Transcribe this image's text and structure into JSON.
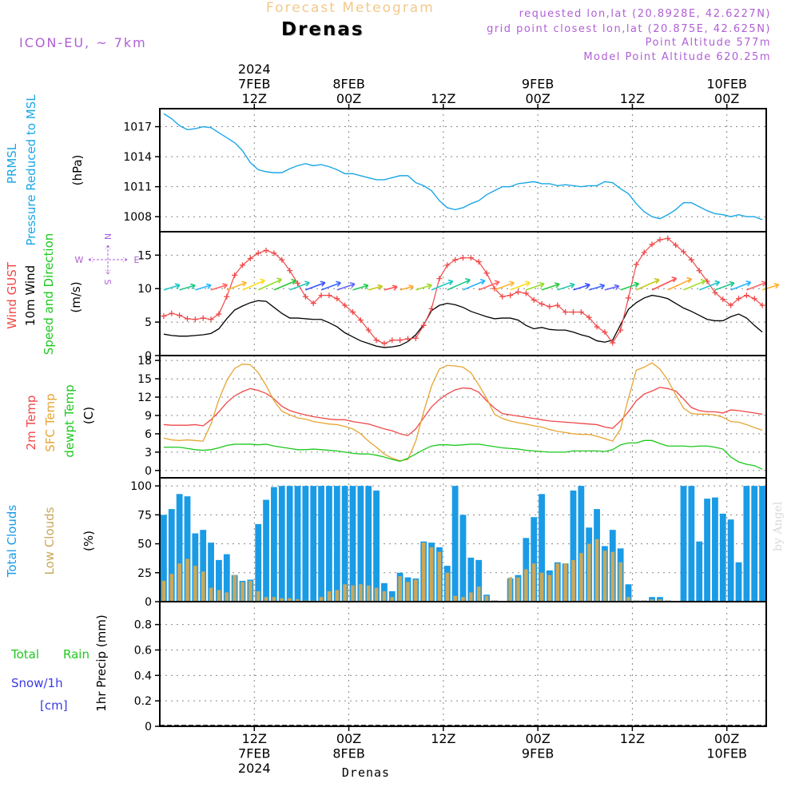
{
  "header": {
    "title": "Forecast Meteogram",
    "location": "Drenas",
    "model": "ICON-EU, ~ 7km",
    "requested": "requested lon,lat (20.8928E, 42.6227N)",
    "grid_point": "grid point closest lon,lat (20.875E, 42.625N)",
    "point_altitude": "Point Altitude 577m",
    "model_altitude": "Model Point Altitude 620.25m",
    "footer_location": "Drenas",
    "watermark": "by Angel"
  },
  "time_axis": {
    "top": [
      {
        "lines": [
          "2024",
          "7FEB",
          "12Z"
        ],
        "hours": 12
      },
      {
        "lines": [
          "8FEB",
          "00Z"
        ],
        "hours": 24
      },
      {
        "lines": [
          "12Z"
        ],
        "hours": 36
      },
      {
        "lines": [
          "9FEB",
          "00Z"
        ],
        "hours": 48
      },
      {
        "lines": [
          "12Z"
        ],
        "hours": 60
      },
      {
        "lines": [
          "10FEB",
          "00Z"
        ],
        "hours": 72
      }
    ],
    "bottom": [
      {
        "lines": [
          "12Z",
          "7FEB",
          "2024"
        ],
        "hours": 12
      },
      {
        "lines": [
          "00Z",
          "8FEB"
        ],
        "hours": 24
      },
      {
        "lines": [
          "12Z"
        ],
        "hours": 36
      },
      {
        "lines": [
          "00Z",
          "9FEB"
        ],
        "hours": 48
      },
      {
        "lines": [
          "12Z"
        ],
        "hours": 60
      },
      {
        "lines": [
          "00Z",
          "10FEB"
        ],
        "hours": 72
      }
    ]
  },
  "panel_labels": {
    "pressure": [
      "PRMSL",
      "Pressure Reduced to MSL"
    ],
    "pressure_unit": "(hPa)",
    "wind_gust": "Wind GUST",
    "wind_10m": "10m Wind",
    "wind_speed_dir": "Speed and Direction",
    "wind_unit": "(m/s)",
    "compass": {
      "n": "N",
      "s": "S",
      "w": "W",
      "e": "E"
    },
    "temp_2m": "2m Temp",
    "temp_sfc": "SFC Temp",
    "temp_dewpt": "dewpt Temp",
    "temp_unit": "(C)",
    "total_clouds": "Total Clouds",
    "low_clouds": "Low Clouds",
    "clouds_unit": "(%)",
    "precip_total": "Total",
    "precip_rain": "Rain",
    "precip_snow": "Snow/1h",
    "precip_snow_unit": "[cm]",
    "precip_axis": "1hr Precip (mm)"
  },
  "colors": {
    "pressure": "#1aa7e6",
    "gust": "#f04848",
    "wind": "#000000",
    "temp2m": "#f04848",
    "sfc": "#e5a533",
    "dewpt": "#1ec81e",
    "total_clouds": "#1a9be6",
    "low_clouds": "#c9a85a",
    "title": "#f3c98b",
    "purple": "#b05fd6",
    "rain": "#1ec81e",
    "snow": "#3a3ae6"
  },
  "chart_data": [
    {
      "type": "line",
      "name": "pressure",
      "ylabel": "(hPa)",
      "ylim": [
        1006.5,
        1018.8
      ],
      "yticks": [
        1008,
        1011,
        1014,
        1017
      ],
      "xlim_hours": [
        0,
        77
      ],
      "x_hours": [
        0.5,
        1.5,
        2.5,
        3.5,
        4.5,
        5.5,
        6.5,
        7.5,
        8.5,
        9.5,
        10.5,
        11.5,
        12.5,
        13.5,
        14.5,
        15.5,
        16.5,
        17.5,
        18.5,
        19.5,
        20.5,
        21.5,
        22.5,
        23.5,
        24.5,
        25.5,
        26.5,
        27.5,
        28.5,
        29.5,
        30.5,
        31.5,
        32.5,
        33.5,
        34.5,
        35.5,
        36.5,
        37.5,
        38.5,
        39.5,
        40.5,
        41.5,
        42.5,
        43.5,
        44.5,
        45.5,
        46.5,
        47.5,
        48.5,
        49.5,
        50.5,
        51.5,
        52.5,
        53.5,
        54.5,
        55.5,
        56.5,
        57.5,
        58.5,
        59.5,
        60.5,
        61.5,
        62.5,
        63.5,
        64.5,
        65.5,
        66.5,
        67.5,
        68.5,
        69.5,
        70.5,
        71.5,
        72.5,
        73.5,
        74.5,
        75.5,
        76.5
      ],
      "values": [
        1018.3,
        1017.8,
        1017.1,
        1016.7,
        1016.8,
        1017.0,
        1016.9,
        1016.4,
        1015.9,
        1015.4,
        1014.6,
        1013.4,
        1012.7,
        1012.5,
        1012.4,
        1012.4,
        1012.8,
        1013.1,
        1013.3,
        1013.1,
        1013.2,
        1013.0,
        1012.7,
        1012.3,
        1012.3,
        1012.1,
        1011.9,
        1011.7,
        1011.7,
        1011.9,
        1012.1,
        1012.1,
        1011.4,
        1011.1,
        1010.6,
        1009.6,
        1008.9,
        1008.7,
        1008.9,
        1009.3,
        1009.6,
        1010.2,
        1010.6,
        1011.0,
        1011.0,
        1011.3,
        1011.4,
        1011.5,
        1011.3,
        1011.3,
        1011.1,
        1011.2,
        1011.1,
        1011.0,
        1011.1,
        1011.1,
        1011.5,
        1011.4,
        1010.8,
        1010.3,
        1009.3,
        1008.5,
        1008.0,
        1007.8,
        1008.2,
        1008.7,
        1009.4,
        1009.4,
        1009.0,
        1008.6,
        1008.3,
        1008.2,
        1008.0,
        1008.2,
        1008.0,
        1008.0,
        1007.7
      ]
    },
    {
      "type": "line",
      "name": "wind",
      "ylabel": "(m/s)",
      "ylim": [
        0,
        18.5
      ],
      "yticks": [
        0,
        5,
        10,
        15
      ],
      "x_hours": [
        0.5,
        1.5,
        2.5,
        3.5,
        4.5,
        5.5,
        6.5,
        7.5,
        8.5,
        9.5,
        10.5,
        11.5,
        12.5,
        13.5,
        14.5,
        15.5,
        16.5,
        17.5,
        18.5,
        19.5,
        20.5,
        21.5,
        22.5,
        23.5,
        24.5,
        25.5,
        26.5,
        27.5,
        28.5,
        29.5,
        30.5,
        31.5,
        32.5,
        33.5,
        34.5,
        35.5,
        36.5,
        37.5,
        38.5,
        39.5,
        40.5,
        41.5,
        42.5,
        43.5,
        44.5,
        45.5,
        46.5,
        47.5,
        48.5,
        49.5,
        50.5,
        51.5,
        52.5,
        53.5,
        54.5,
        55.5,
        56.5,
        57.5,
        58.5,
        59.5,
        60.5,
        61.5,
        62.5,
        63.5,
        64.5,
        65.5,
        66.5,
        67.5,
        68.5,
        69.5,
        70.5,
        71.5,
        72.5,
        73.5,
        74.5,
        75.5,
        76.5
      ],
      "series": [
        {
          "name": "Wind GUST",
          "values": [
            5.9,
            6.3,
            6.0,
            5.5,
            5.4,
            5.6,
            5.4,
            6.2,
            8.8,
            12.0,
            13.5,
            14.5,
            15.3,
            15.7,
            15.3,
            14.3,
            12.7,
            10.8,
            8.8,
            7.8,
            9.0,
            9.0,
            8.5,
            7.5,
            6.5,
            5.3,
            3.8,
            2.3,
            1.8,
            2.3,
            2.3,
            2.5,
            2.6,
            4.5,
            7.0,
            11.5,
            13.5,
            14.3,
            14.6,
            14.6,
            14.0,
            12.3,
            10.0,
            8.8,
            9.0,
            9.5,
            9.3,
            8.3,
            7.7,
            7.3,
            7.5,
            6.5,
            6.5,
            6.5,
            5.7,
            4.3,
            3.5,
            1.9,
            3.8,
            8.6,
            13.6,
            15.4,
            16.6,
            17.3,
            17.5,
            16.5,
            15.5,
            14.3,
            12.7,
            11.1,
            9.4,
            8.4,
            7.5,
            8.5,
            9.0,
            8.5,
            7.5
          ]
        },
        {
          "name": "10m Wind",
          "values": [
            3.2,
            3.0,
            2.9,
            2.9,
            3.0,
            3.1,
            3.3,
            4.0,
            5.5,
            6.8,
            7.4,
            7.9,
            8.2,
            8.1,
            7.2,
            6.3,
            5.6,
            5.6,
            5.5,
            5.4,
            5.4,
            4.9,
            4.3,
            3.4,
            2.8,
            2.2,
            1.8,
            1.4,
            1.2,
            1.3,
            1.5,
            2.1,
            3.1,
            4.6,
            6.7,
            7.5,
            7.8,
            7.6,
            7.2,
            6.6,
            6.2,
            5.8,
            5.5,
            5.6,
            5.6,
            5.3,
            4.5,
            4.0,
            4.2,
            3.9,
            3.8,
            3.8,
            3.5,
            3.1,
            2.8,
            2.2,
            2.0,
            2.3,
            4.6,
            6.9,
            7.9,
            8.6,
            9.0,
            8.8,
            8.5,
            7.8,
            7.1,
            6.6,
            6.0,
            5.4,
            5.2,
            5.2,
            5.8,
            6.2,
            5.6,
            4.5,
            3.5
          ]
        }
      ],
      "barb_palette": [
        "#1ec8c8",
        "#1ec88c",
        "#28b4ff",
        "#ff6464",
        "#ffb432",
        "#ffdc1e",
        "#96dc28",
        "#28c83c",
        "#28c8b4",
        "#3c50ff",
        "#3c64ff",
        "#6464ff",
        "#1ecc50",
        "#c8c81e",
        "#ff5050",
        "#ffaa32",
        "#a0dc28"
      ]
    },
    {
      "type": "line",
      "name": "temperature",
      "ylabel": "(C)",
      "ylim": [
        -1.2,
        18.8
      ],
      "yticks": [
        0,
        3,
        6,
        9,
        12,
        15,
        18
      ],
      "x_hours": [
        0.5,
        1.5,
        2.5,
        3.5,
        4.5,
        5.5,
        6.5,
        7.5,
        8.5,
        9.5,
        10.5,
        11.5,
        12.5,
        13.5,
        14.5,
        15.5,
        16.5,
        17.5,
        18.5,
        19.5,
        20.5,
        21.5,
        22.5,
        23.5,
        24.5,
        25.5,
        26.5,
        27.5,
        28.5,
        29.5,
        30.5,
        31.5,
        32.5,
        33.5,
        34.5,
        35.5,
        36.5,
        37.5,
        38.5,
        39.5,
        40.5,
        41.5,
        42.5,
        43.5,
        44.5,
        45.5,
        46.5,
        47.5,
        48.5,
        49.5,
        50.5,
        51.5,
        52.5,
        53.5,
        54.5,
        55.5,
        56.5,
        57.5,
        58.5,
        59.5,
        60.5,
        61.5,
        62.5,
        63.5,
        64.5,
        65.5,
        66.5,
        67.5,
        68.5,
        69.5,
        70.5,
        71.5,
        72.5,
        73.5,
        74.5,
        75.5,
        76.5
      ],
      "series": [
        {
          "name": "2m Temp",
          "values": [
            7.5,
            7.4,
            7.4,
            7.4,
            7.5,
            7.3,
            8.3,
            9.6,
            11.1,
            12.2,
            12.9,
            13.4,
            13.1,
            12.6,
            11.7,
            10.5,
            9.8,
            9.4,
            9.1,
            8.8,
            8.6,
            8.4,
            8.3,
            8.3,
            8.0,
            7.8,
            7.6,
            7.2,
            6.8,
            6.5,
            6.0,
            5.7,
            6.8,
            8.6,
            10.4,
            11.6,
            12.5,
            13.2,
            13.5,
            13.4,
            12.8,
            11.4,
            10.2,
            9.3,
            9.1,
            8.9,
            8.7,
            8.5,
            8.3,
            8.1,
            8.0,
            7.9,
            7.8,
            7.7,
            7.6,
            7.5,
            7.1,
            6.9,
            8.1,
            9.6,
            11.4,
            12.5,
            13.0,
            13.6,
            13.4,
            13.0,
            11.7,
            10.3,
            9.8,
            9.6,
            9.6,
            9.4,
            9.9,
            9.8,
            9.6,
            9.4,
            9.2
          ]
        },
        {
          "name": "SFC Temp",
          "values": [
            5.3,
            5.0,
            4.9,
            5.0,
            4.9,
            4.8,
            7.6,
            11.6,
            14.7,
            16.7,
            17.4,
            17.3,
            16.0,
            13.9,
            11.4,
            9.7,
            9.1,
            8.6,
            8.4,
            8.0,
            7.8,
            7.6,
            7.5,
            7.2,
            6.8,
            6.0,
            4.8,
            3.8,
            2.7,
            2.0,
            1.6,
            1.8,
            4.8,
            9.6,
            13.8,
            16.6,
            17.2,
            17.1,
            16.9,
            16.0,
            14.0,
            11.8,
            9.2,
            8.5,
            8.1,
            7.8,
            7.6,
            7.3,
            7.1,
            6.7,
            6.4,
            6.2,
            6.0,
            5.9,
            5.9,
            5.6,
            5.2,
            4.8,
            6.8,
            11.8,
            16.4,
            16.9,
            17.6,
            16.6,
            14.8,
            12.4,
            10.2,
            9.3,
            9.2,
            9.2,
            9.1,
            8.7,
            8.0,
            7.9,
            7.5,
            7.0,
            6.6
          ]
        },
        {
          "name": "dewpt Temp",
          "values": [
            3.8,
            3.8,
            3.8,
            3.6,
            3.4,
            3.3,
            3.4,
            3.7,
            4.1,
            4.3,
            4.3,
            4.3,
            4.2,
            4.3,
            4.0,
            3.8,
            3.6,
            3.4,
            3.4,
            3.5,
            3.4,
            3.3,
            3.2,
            3.0,
            2.8,
            2.7,
            2.7,
            2.5,
            2.2,
            1.8,
            1.5,
            2.0,
            2.7,
            3.4,
            4.0,
            4.2,
            4.2,
            4.1,
            4.2,
            4.3,
            4.3,
            4.1,
            3.9,
            3.7,
            3.6,
            3.5,
            3.3,
            3.2,
            3.1,
            3.0,
            3.0,
            3.0,
            3.2,
            3.2,
            3.2,
            3.2,
            3.1,
            3.4,
            4.2,
            4.5,
            4.5,
            4.9,
            4.9,
            4.4,
            4.0,
            4.0,
            4.0,
            3.9,
            4.0,
            4.0,
            3.8,
            3.5,
            2.2,
            1.4,
            1.0,
            0.8,
            0.2
          ]
        }
      ]
    },
    {
      "type": "bar",
      "name": "clouds",
      "ylabel": "(%)",
      "ylim": [
        0,
        107
      ],
      "yticks": [
        0,
        25,
        50,
        75,
        100
      ],
      "x_hours": [
        0.5,
        1.5,
        2.5,
        3.5,
        4.5,
        5.5,
        6.5,
        7.5,
        8.5,
        9.5,
        10.5,
        11.5,
        12.5,
        13.5,
        14.5,
        15.5,
        16.5,
        17.5,
        18.5,
        19.5,
        20.5,
        21.5,
        22.5,
        23.5,
        24.5,
        25.5,
        26.5,
        27.5,
        28.5,
        29.5,
        30.5,
        31.5,
        32.5,
        33.5,
        34.5,
        35.5,
        36.5,
        37.5,
        38.5,
        39.5,
        40.5,
        41.5,
        42.5,
        43.5,
        44.5,
        45.5,
        46.5,
        47.5,
        48.5,
        49.5,
        50.5,
        51.5,
        52.5,
        53.5,
        54.5,
        55.5,
        56.5,
        57.5,
        58.5,
        59.5,
        60.5,
        61.5,
        62.5,
        63.5,
        64.5,
        65.5,
        66.5,
        67.5,
        68.5,
        69.5,
        70.5,
        71.5,
        72.5,
        73.5,
        74.5,
        75.5,
        76.5
      ],
      "series": [
        {
          "name": "Total Clouds",
          "values": [
            75,
            80,
            93,
            91,
            59,
            62,
            51,
            36,
            41,
            23,
            18,
            19,
            67,
            88,
            99,
            100,
            100,
            100,
            100,
            100,
            100,
            100,
            100,
            100,
            100,
            100,
            100,
            96,
            16,
            9,
            25,
            21,
            20,
            52,
            51,
            47,
            31,
            100,
            75,
            38,
            36,
            6,
            1,
            0,
            20,
            23,
            55,
            73,
            93,
            27,
            34,
            33,
            96,
            100,
            64,
            80,
            48,
            62,
            46,
            15,
            1,
            1,
            4,
            4,
            1,
            0,
            100,
            100,
            52,
            89,
            90,
            76,
            71,
            34,
            100,
            100,
            100
          ]
        },
        {
          "name": "Low Clouds",
          "values": [
            18,
            24,
            33,
            37,
            31,
            26,
            12,
            10,
            8,
            23,
            17,
            18,
            9,
            4,
            4,
            3,
            3,
            2,
            1,
            1,
            4,
            9,
            10,
            15,
            14,
            15,
            14,
            12,
            9,
            4,
            22,
            17,
            19,
            51,
            47,
            43,
            25,
            5,
            4,
            8,
            13,
            5,
            1,
            0,
            21,
            21,
            28,
            33,
            25,
            23,
            33,
            33,
            36,
            42,
            50,
            54,
            44,
            43,
            34,
            4,
            1,
            1,
            2,
            2,
            1,
            0,
            0,
            0,
            0,
            0,
            0,
            0,
            0,
            0,
            0,
            0,
            0
          ]
        }
      ]
    },
    {
      "type": "bar",
      "name": "precipitation",
      "ylabel": "1hr Precip (mm)",
      "ylim": [
        0,
        0.98
      ],
      "yticks": [
        0,
        0.2,
        0.4,
        0.6,
        0.8
      ],
      "ytick_labels": [
        "0",
        "0.2",
        "0.4",
        "0.6",
        "0.8"
      ],
      "values": []
    }
  ]
}
